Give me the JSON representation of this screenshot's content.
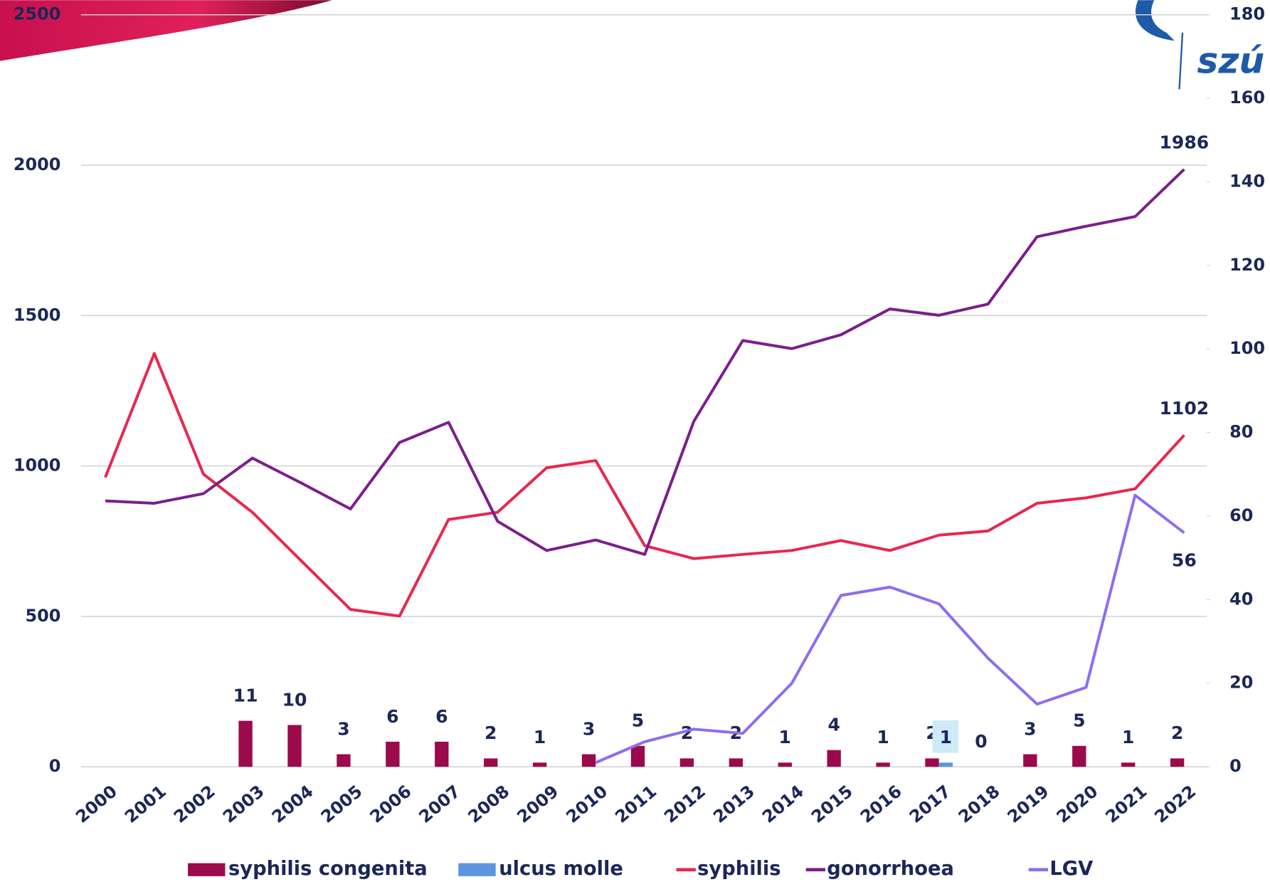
{
  "logo": "szú",
  "chart_data": {
    "type": "bar-line",
    "categories": [
      "2000",
      "2001",
      "2002",
      "2003",
      "2004",
      "2005",
      "2006",
      "2007",
      "2008",
      "2009",
      "2010",
      "2011",
      "2012",
      "2013",
      "2014",
      "2015",
      "2016",
      "2017",
      "2018",
      "2019",
      "2020",
      "2021",
      "2022"
    ],
    "series": [
      {
        "name": "syphilis congenita",
        "kind": "bar",
        "axis": "y2",
        "color": "#9b0a4a",
        "values": [
          null,
          null,
          null,
          11,
          10,
          3,
          6,
          6,
          2,
          1,
          3,
          5,
          2,
          2,
          1,
          4,
          1,
          2,
          0,
          3,
          5,
          1,
          2
        ]
      },
      {
        "name": "ulcus molle",
        "kind": "bar",
        "axis": "y2",
        "color": "#5b95e0",
        "values": [
          null,
          null,
          null,
          null,
          null,
          null,
          null,
          null,
          null,
          null,
          null,
          null,
          null,
          null,
          null,
          null,
          null,
          1,
          null,
          null,
          null,
          null,
          null
        ]
      },
      {
        "name": "syphilis",
        "kind": "line",
        "color": "#e8274f",
        "values": [
          962,
          1374,
          973,
          846,
          684,
          523,
          501,
          822,
          846,
          994,
          1018,
          735,
          692,
          706,
          719,
          752,
          719,
          770,
          784,
          876,
          894,
          924,
          1102
        ]
      },
      {
        "name": "gonorrhoea",
        "kind": "line",
        "color": "#7b1e8c",
        "values": [
          884,
          876,
          908,
          1026,
          943,
          857,
          1078,
          1145,
          816,
          719,
          754,
          706,
          1148,
          1417,
          1390,
          1436,
          1522,
          1501,
          1538,
          1762,
          1797,
          1829,
          1986
        ]
      },
      {
        "name": "LGV",
        "kind": "line",
        "axis": "y2",
        "color": "#8f6cf0",
        "values": [
          null,
          null,
          null,
          null,
          null,
          null,
          null,
          null,
          null,
          null,
          1,
          6,
          9,
          8,
          20,
          41,
          43,
          39,
          26,
          15,
          19,
          65,
          56
        ]
      }
    ],
    "ylim": [
      0,
      2500
    ],
    "yticks": [
      0,
      500,
      1000,
      1500,
      2000,
      2500
    ],
    "y2lim": [
      0,
      180
    ],
    "y2ticks": [
      0,
      20,
      40,
      60,
      80,
      100,
      120,
      140,
      160,
      180
    ],
    "grid": true,
    "legend": "bottom"
  }
}
